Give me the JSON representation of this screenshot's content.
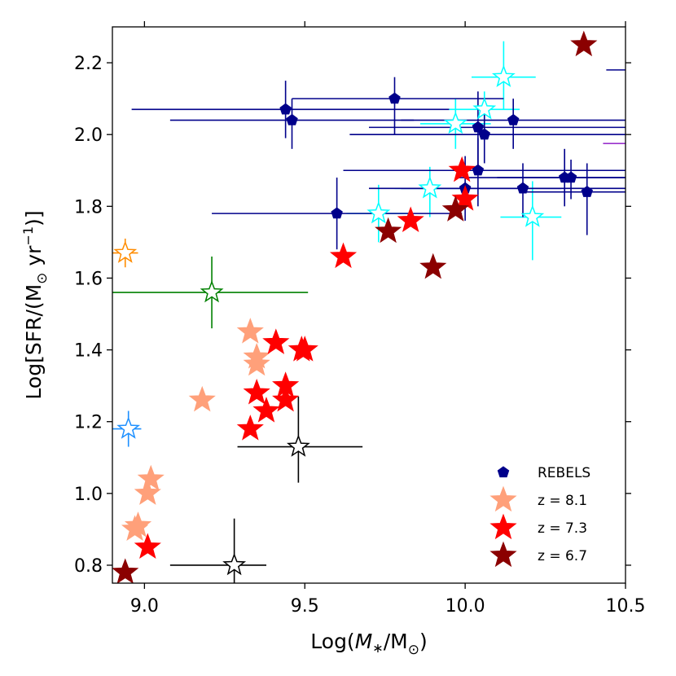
{
  "chart_data": {
    "type": "scatter",
    "xlabel_parts": [
      "Log(",
      "M",
      "∗",
      "/M",
      "⊙",
      ")"
    ],
    "ylabel_parts": [
      "Log[SFR/(M",
      "⊙",
      " yr",
      "−1",
      ")]"
    ],
    "xlim": [
      8.9,
      10.5
    ],
    "ylim": [
      0.75,
      2.3
    ],
    "xticks": [
      9.0,
      9.5,
      10.0,
      10.5
    ],
    "xtick_labels": [
      "9.0",
      "9.5",
      "10.0",
      "10.5"
    ],
    "yticks": [
      0.8,
      1.0,
      1.2,
      1.4,
      1.6,
      1.8,
      2.0,
      2.2
    ],
    "ytick_labels": [
      "0.8",
      "1.0",
      "1.2",
      "1.4",
      "1.6",
      "1.8",
      "2.0",
      "2.2"
    ],
    "colors": {
      "rebels": "#00008b",
      "z81": "#ffa07a",
      "z73": "#ff0000",
      "z67": "#8b0000",
      "cyan": "#00ffff",
      "orange": "#ff8c00",
      "green": "#008000",
      "blue": "#1e90ff",
      "black": "#000000",
      "purple": "#9932cc"
    },
    "legend": [
      {
        "label": "REBELS",
        "marker": "pentagon",
        "color": "#00008b"
      },
      {
        "label": "z = 8.1",
        "marker": "star",
        "color": "#ffa07a"
      },
      {
        "label": "z = 7.3",
        "marker": "star",
        "color": "#ff0000"
      },
      {
        "label": "z = 6.7",
        "marker": "star",
        "color": "#8b0000"
      }
    ],
    "series": [
      {
        "name": "REBELS",
        "marker": "pentagon",
        "color": "#00008b",
        "points": [
          {
            "x": 9.44,
            "y": 2.07,
            "xlo": 8.96,
            "xhi": 9.95,
            "ylo": 1.99,
            "yhi": 2.15
          },
          {
            "x": 9.46,
            "y": 2.04,
            "xlo": 9.08,
            "xhi": 9.84,
            "ylo": 1.96,
            "yhi": 2.1
          },
          {
            "x": 9.78,
            "y": 2.1,
            "xlo": 9.46,
            "xhi": 10.12,
            "ylo": 2.0,
            "yhi": 2.16
          },
          {
            "x": 10.04,
            "y": 2.02,
            "xlo": 9.7,
            "xhi": 10.5,
            "ylo": 1.9,
            "yhi": 2.12
          },
          {
            "x": 10.06,
            "y": 2.0,
            "xlo": 9.64,
            "xhi": 10.5,
            "ylo": 1.92,
            "yhi": 2.06
          },
          {
            "x": 10.15,
            "y": 2.04,
            "xlo": 9.8,
            "xhi": 10.5,
            "ylo": 1.96,
            "yhi": 2.1
          },
          {
            "x": 10.04,
            "y": 1.9,
            "xlo": 9.62,
            "xhi": 10.5,
            "ylo": 1.8,
            "yhi": 1.99
          },
          {
            "x": 10.0,
            "y": 1.85,
            "xlo": 9.7,
            "xhi": 10.3,
            "ylo": 1.76,
            "yhi": 1.94
          },
          {
            "x": 10.18,
            "y": 1.85,
            "xlo": 9.8,
            "xhi": 10.5,
            "ylo": 1.77,
            "yhi": 1.92
          },
          {
            "x": 10.31,
            "y": 1.88,
            "xlo": 9.98,
            "xhi": 10.5,
            "ylo": 1.8,
            "yhi": 1.96
          },
          {
            "x": 10.33,
            "y": 1.88,
            "xlo": 10.1,
            "xhi": 10.5,
            "ylo": 1.82,
            "yhi": 1.93
          },
          {
            "x": 10.38,
            "y": 1.84,
            "xlo": 10.18,
            "xhi": 10.5,
            "ylo": 1.72,
            "yhi": 1.92
          },
          {
            "x": 9.6,
            "y": 1.78,
            "xlo": 9.21,
            "xhi": 9.99,
            "ylo": 1.68,
            "yhi": 1.88
          }
        ]
      },
      {
        "name": "z = 8.1",
        "marker": "star",
        "color": "#ffa07a",
        "points": [
          {
            "x": 9.33,
            "y": 1.45
          },
          {
            "x": 9.35,
            "y": 1.38
          },
          {
            "x": 9.35,
            "y": 1.36
          },
          {
            "x": 9.18,
            "y": 1.26
          },
          {
            "x": 9.02,
            "y": 1.04
          },
          {
            "x": 9.01,
            "y": 1.0
          },
          {
            "x": 8.98,
            "y": 0.91
          },
          {
            "x": 8.97,
            "y": 0.9
          }
        ]
      },
      {
        "name": "z = 7.3",
        "marker": "star",
        "color": "#ff0000",
        "points": [
          {
            "x": 9.99,
            "y": 1.9
          },
          {
            "x": 10.0,
            "y": 1.82
          },
          {
            "x": 9.83,
            "y": 1.76
          },
          {
            "x": 9.62,
            "y": 1.66
          },
          {
            "x": 9.41,
            "y": 1.42
          },
          {
            "x": 9.5,
            "y": 1.4
          },
          {
            "x": 9.49,
            "y": 1.4
          },
          {
            "x": 9.44,
            "y": 1.3
          },
          {
            "x": 9.35,
            "y": 1.28
          },
          {
            "x": 9.44,
            "y": 1.26
          },
          {
            "x": 9.38,
            "y": 1.23
          },
          {
            "x": 9.33,
            "y": 1.18
          },
          {
            "x": 9.01,
            "y": 0.85
          }
        ]
      },
      {
        "name": "z = 6.7",
        "marker": "star",
        "color": "#8b0000",
        "points": [
          {
            "x": 10.37,
            "y": 2.25
          },
          {
            "x": 9.97,
            "y": 1.79
          },
          {
            "x": 9.76,
            "y": 1.73
          },
          {
            "x": 9.9,
            "y": 1.63
          },
          {
            "x": 8.94,
            "y": 0.78
          }
        ]
      }
    ],
    "open_stars": [
      {
        "x": 10.12,
        "y": 2.16,
        "xlo": 10.02,
        "xhi": 10.22,
        "ylo": 2.07,
        "yhi": 2.26,
        "color": "#00ffff"
      },
      {
        "x": 10.06,
        "y": 2.07,
        "xlo": 9.95,
        "xhi": 10.17,
        "ylo": 2.0,
        "yhi": 2.12,
        "color": "#00ffff"
      },
      {
        "x": 9.97,
        "y": 2.03,
        "xlo": 9.86,
        "xhi": 10.08,
        "ylo": 1.96,
        "yhi": 2.1,
        "color": "#00ffff"
      },
      {
        "x": 9.89,
        "y": 1.85,
        "xlo": 9.78,
        "xhi": 9.99,
        "ylo": 1.77,
        "yhi": 1.91,
        "color": "#00ffff"
      },
      {
        "x": 9.73,
        "y": 1.78,
        "xlo": 9.63,
        "xhi": 9.83,
        "ylo": 1.7,
        "yhi": 1.86,
        "color": "#00ffff"
      },
      {
        "x": 10.21,
        "y": 1.77,
        "xlo": 10.11,
        "xhi": 10.3,
        "ylo": 1.65,
        "yhi": 1.87,
        "color": "#00ffff"
      },
      {
        "x": 8.94,
        "y": 1.67,
        "xlo": 8.9,
        "xhi": 8.98,
        "ylo": 1.63,
        "yhi": 1.71,
        "color": "#ff8c00"
      },
      {
        "x": 9.21,
        "y": 1.56,
        "xlo": 8.9,
        "xhi": 9.51,
        "ylo": 1.46,
        "yhi": 1.66,
        "color": "#008000"
      },
      {
        "x": 8.95,
        "y": 1.18,
        "xlo": 8.9,
        "xhi": 8.99,
        "ylo": 1.13,
        "yhi": 1.23,
        "color": "#1e90ff"
      },
      {
        "x": 9.48,
        "y": 1.13,
        "xlo": 9.29,
        "xhi": 9.68,
        "ylo": 1.03,
        "yhi": 1.27,
        "color": "#000000"
      },
      {
        "x": 9.28,
        "y": 0.8,
        "xlo": 9.08,
        "xhi": 9.38,
        "ylo": 0.75,
        "yhi": 0.93,
        "color": "#000000"
      }
    ],
    "edge_segments": [
      {
        "y": 2.18,
        "xlo": 10.44,
        "xhi": 10.5,
        "color": "#00008b"
      },
      {
        "y": 1.975,
        "xlo": 10.43,
        "xhi": 10.5,
        "color": "#9932cc"
      }
    ]
  }
}
